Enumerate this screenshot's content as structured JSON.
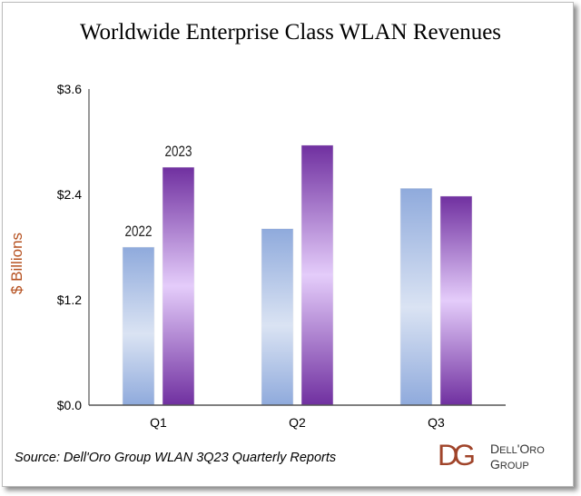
{
  "chart_data": {
    "type": "bar",
    "title": "Worldwide Enterprise Class WLAN Revenues",
    "ylabel": "$ Billions",
    "xlabel": "",
    "categories": [
      "Q1",
      "Q2",
      "Q3"
    ],
    "yticks": [
      "$0.0",
      "$1.2",
      "$2.4",
      "$3.6"
    ],
    "ylim": [
      0,
      3.6
    ],
    "grid": false,
    "series": [
      {
        "name": "2022",
        "values": [
          1.8,
          2.01,
          2.47
        ],
        "color": "#8faadc"
      },
      {
        "name": "2023",
        "values": [
          2.71,
          2.96,
          2.38
        ],
        "color": "#7030a0"
      }
    ],
    "legend": "inline labels above Q1 bars",
    "source": "Source: Dell'Oro Group WLAN 3Q23 Quarterly Reports"
  },
  "logo": {
    "text_line1": "Dell'Oro",
    "text_line2": "Group",
    "mark": "DG",
    "color": "#a0442a"
  },
  "colors": {
    "ylabel": "#b5501f"
  }
}
